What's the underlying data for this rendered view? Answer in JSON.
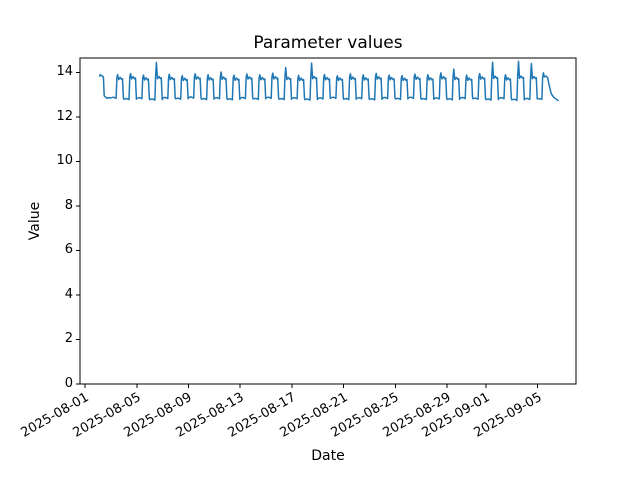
{
  "chart_data": {
    "type": "line",
    "title": "Parameter values",
    "xlabel": "Date",
    "ylabel": "Value",
    "ylim": [
      0,
      14.65
    ],
    "yticks": [
      0,
      2,
      4,
      6,
      8,
      10,
      12,
      14
    ],
    "x_axis_days": [
      -0.39,
      37.97
    ],
    "x_epoch": "2025-08-01",
    "xticks": [
      {
        "label": "2025-08-01",
        "day": 0
      },
      {
        "label": "2025-08-05",
        "day": 4
      },
      {
        "label": "2025-08-09",
        "day": 8
      },
      {
        "label": "2025-08-13",
        "day": 12
      },
      {
        "label": "2025-08-17",
        "day": 16
      },
      {
        "label": "2025-08-21",
        "day": 20
      },
      {
        "label": "2025-08-25",
        "day": 24
      },
      {
        "label": "2025-08-29",
        "day": 28
      },
      {
        "label": "2025-09-01",
        "day": 31
      },
      {
        "label": "2025-09-05",
        "day": 35
      }
    ],
    "grid": false,
    "legend": "none",
    "line_color": "#1f77b4",
    "line_width": 1.5,
    "background_color": "#ffffff",
    "axis_color": "#000000",
    "series": {
      "name": "Parameter values",
      "value_range_observed": [
        12.74,
        14.5
      ],
      "pattern": "daily square-wave oscillation: low plateau ~12.8, high plateau ~13.75, occasional spikes to ~14.4-14.5",
      "lead_points": [
        [
          1.13,
          13.84
        ],
        [
          1.17,
          13.9
        ],
        [
          1.42,
          13.8
        ],
        [
          1.48,
          12.95
        ],
        [
          1.7,
          12.84
        ],
        [
          1.88,
          12.87
        ],
        [
          1.97,
          12.85
        ]
      ],
      "cycle_template": [
        [
          0.0,
          "low",
          0.0
        ],
        [
          0.2,
          "low",
          0.03
        ],
        [
          0.4,
          "low",
          -0.02
        ],
        [
          0.46,
          "high",
          0.06
        ],
        [
          0.52,
          "peak",
          0.0
        ],
        [
          0.6,
          "high",
          -0.04
        ],
        [
          0.72,
          "high",
          0.06
        ],
        [
          0.82,
          "high",
          -0.03
        ],
        [
          0.9,
          "high",
          0.0
        ],
        [
          0.97,
          "low",
          0.0
        ]
      ],
      "days": [
        {
          "day": 2,
          "date": "2025-08-03",
          "low": 12.86,
          "high": 13.72,
          "peak": 13.9
        },
        {
          "day": 3,
          "date": "2025-08-04",
          "low": 12.8,
          "high": 13.75,
          "peak": 13.95
        },
        {
          "day": 4,
          "date": "2025-08-05",
          "low": 12.84,
          "high": 13.7,
          "peak": 13.88
        },
        {
          "day": 5,
          "date": "2025-08-06",
          "low": 12.78,
          "high": 13.76,
          "peak": 14.45
        },
        {
          "day": 6,
          "date": "2025-08-07",
          "low": 12.85,
          "high": 13.72,
          "peak": 13.92
        },
        {
          "day": 7,
          "date": "2025-08-08",
          "low": 12.82,
          "high": 13.68,
          "peak": 13.86
        },
        {
          "day": 8,
          "date": "2025-08-09",
          "low": 12.87,
          "high": 13.74,
          "peak": 13.94
        },
        {
          "day": 9,
          "date": "2025-08-10",
          "low": 12.8,
          "high": 13.7,
          "peak": 13.9
        },
        {
          "day": 10,
          "date": "2025-08-11",
          "low": 12.84,
          "high": 13.73,
          "peak": 14.02
        },
        {
          "day": 11,
          "date": "2025-08-12",
          "low": 12.79,
          "high": 13.69,
          "peak": 13.88
        },
        {
          "day": 12,
          "date": "2025-08-13",
          "low": 12.85,
          "high": 13.74,
          "peak": 13.93
        },
        {
          "day": 13,
          "date": "2025-08-14",
          "low": 12.81,
          "high": 13.71,
          "peak": 13.89
        },
        {
          "day": 14,
          "date": "2025-08-15",
          "low": 12.86,
          "high": 13.75,
          "peak": 13.97
        },
        {
          "day": 15,
          "date": "2025-08-16",
          "low": 12.8,
          "high": 13.72,
          "peak": 14.22
        },
        {
          "day": 16,
          "date": "2025-08-17",
          "low": 12.84,
          "high": 13.68,
          "peak": 13.87
        },
        {
          "day": 17,
          "date": "2025-08-18",
          "low": 12.78,
          "high": 13.76,
          "peak": 14.42
        },
        {
          "day": 18,
          "date": "2025-08-19",
          "low": 12.83,
          "high": 13.71,
          "peak": 13.91
        },
        {
          "day": 19,
          "date": "2025-08-20",
          "low": 12.86,
          "high": 13.69,
          "peak": 13.85
        },
        {
          "day": 20,
          "date": "2025-08-21",
          "low": 12.8,
          "high": 13.73,
          "peak": 13.94
        },
        {
          "day": 21,
          "date": "2025-08-22",
          "low": 12.84,
          "high": 13.7,
          "peak": 13.89
        },
        {
          "day": 22,
          "date": "2025-08-23",
          "low": 12.79,
          "high": 13.74,
          "peak": 13.96
        },
        {
          "day": 23,
          "date": "2025-08-24",
          "low": 12.85,
          "high": 13.71,
          "peak": 13.88
        },
        {
          "day": 24,
          "date": "2025-08-25",
          "low": 12.81,
          "high": 13.68,
          "peak": 13.86
        },
        {
          "day": 25,
          "date": "2025-08-26",
          "low": 12.86,
          "high": 13.73,
          "peak": 13.92
        },
        {
          "day": 26,
          "date": "2025-08-27",
          "low": 12.8,
          "high": 13.7,
          "peak": 13.9
        },
        {
          "day": 27,
          "date": "2025-08-28",
          "low": 12.83,
          "high": 13.75,
          "peak": 13.98
        },
        {
          "day": 28,
          "date": "2025-08-29",
          "low": 12.79,
          "high": 13.72,
          "peak": 14.15
        },
        {
          "day": 29,
          "date": "2025-08-30",
          "low": 12.85,
          "high": 13.69,
          "peak": 13.88
        },
        {
          "day": 30,
          "date": "2025-08-31",
          "low": 12.82,
          "high": 13.74,
          "peak": 13.95
        },
        {
          "day": 31,
          "date": "2025-09-01",
          "low": 12.78,
          "high": 13.77,
          "peak": 14.46
        },
        {
          "day": 32,
          "date": "2025-09-02",
          "low": 12.84,
          "high": 13.7,
          "peak": 13.9
        },
        {
          "day": 33,
          "date": "2025-09-03",
          "low": 12.77,
          "high": 13.78,
          "peak": 14.5
        },
        {
          "day": 34,
          "date": "2025-09-04",
          "low": 12.81,
          "high": 13.76,
          "peak": 14.4
        }
      ],
      "tail_points": [
        [
          35.0,
          12.83
        ],
        [
          35.33,
          12.8
        ],
        [
          35.39,
          13.75
        ],
        [
          35.45,
          13.98
        ],
        [
          35.52,
          13.8
        ],
        [
          35.65,
          13.84
        ],
        [
          35.78,
          13.76
        ],
        [
          35.88,
          13.45
        ],
        [
          36.05,
          13.05
        ],
        [
          36.25,
          12.88
        ],
        [
          36.45,
          12.8
        ],
        [
          36.58,
          12.74
        ]
      ]
    }
  }
}
